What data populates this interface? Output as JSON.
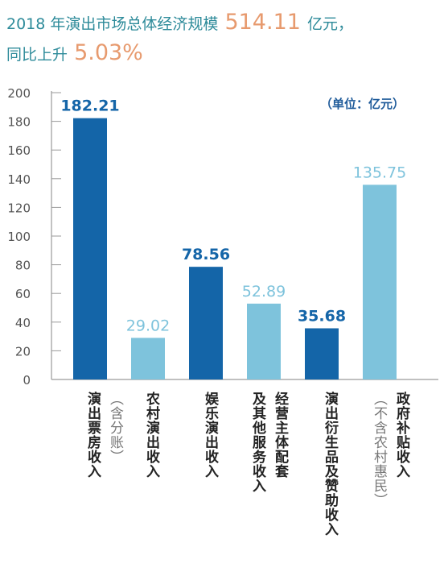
{
  "title": {
    "line1_prefix": "2018 年演出市场总体经济规模",
    "line1_value": "514.11",
    "line1_suffix": "亿元，",
    "line2_prefix": "同比上升",
    "line2_value": "5.03%"
  },
  "unit_label": "（单位：亿元）",
  "colors": {
    "dark": "#1465a8",
    "light": "#7ec3dc",
    "title": "#2e8b9a",
    "accent": "#e79a6e",
    "axis": "#9a9a9a"
  },
  "chart_data": {
    "type": "bar",
    "ylim": [
      0,
      200
    ],
    "yticks": [
      0,
      20,
      40,
      60,
      80,
      100,
      120,
      140,
      160,
      180,
      200
    ],
    "categories": [
      "演出票房收入（含分账）",
      "农村演出收入",
      "娱乐演出收入",
      "经营主体配套及其他服务收入",
      "演出衍生品及赞助收入",
      "政府补贴收入（不含农村惠民）"
    ],
    "values": [
      182.21,
      29.02,
      78.56,
      52.89,
      35.68,
      135.75
    ],
    "value_labels": [
      "182.21",
      "29.02",
      "78.56",
      "52.89",
      "35.68",
      "135.75"
    ],
    "bar_colors": [
      "dark",
      "light",
      "dark",
      "light",
      "dark",
      "light"
    ]
  },
  "xlabels": [
    {
      "col1": "演出票房收入",
      "col1_sub": "（含分账）"
    },
    {
      "col1": "农村演出收入"
    },
    {
      "col1": "娱乐演出收入"
    },
    {
      "col1": "经营主体配套",
      "col2": "及其他服务收入"
    },
    {
      "col1": "演出衍生品及赞助收入"
    },
    {
      "col1": "政府补贴收入",
      "col2_sub": "（不含农村惠民）"
    }
  ]
}
